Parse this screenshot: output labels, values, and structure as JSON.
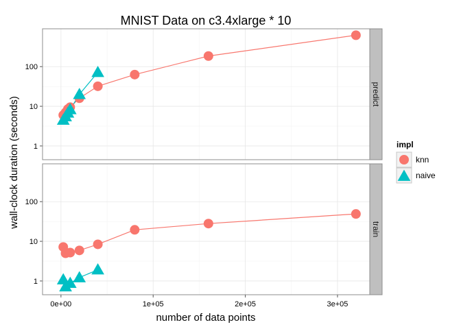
{
  "chart_data": {
    "type": "scatter",
    "title": "MNIST Data on c3.4xlarge * 10",
    "xlabel": "number of data points",
    "ylabel": "wall-clock duration (seconds)",
    "xlim": [
      -20000,
      335000
    ],
    "ylim": [
      0.45,
      900
    ],
    "y_scale": "log10",
    "x_ticks": [
      0,
      100000,
      200000,
      300000
    ],
    "x_tick_labels": [
      "0e+00",
      "1e+05",
      "2e+05",
      "3e+05"
    ],
    "y_ticks": [
      1,
      10,
      100
    ],
    "y_tick_labels": [
      "1",
      "10",
      "100"
    ],
    "grid": true,
    "legend": {
      "title": "impl",
      "position": "right",
      "entries": [
        {
          "label": "knn",
          "color": "#F8766D",
          "shape": "circle"
        },
        {
          "label": "naive",
          "color": "#00BFC4",
          "shape": "triangle"
        }
      ]
    },
    "facets": [
      {
        "label": "predict",
        "series": [
          {
            "name": "knn",
            "color": "#F8766D",
            "shape": "circle",
            "points": [
              [
                2500,
                6.0
              ],
              [
                5000,
                7.0
              ],
              [
                7500,
                8.5
              ],
              [
                10000,
                9.5
              ],
              [
                20000,
                16
              ],
              [
                40000,
                32
              ],
              [
                80000,
                63
              ],
              [
                160000,
                185
              ],
              [
                320000,
                620
              ]
            ]
          },
          {
            "name": "naive",
            "color": "#00BFC4",
            "shape": "triangle",
            "points": [
              [
                2500,
                4.5
              ],
              [
                5000,
                5.5
              ],
              [
                7500,
                6.8
              ],
              [
                10000,
                8.3
              ],
              [
                20000,
                20
              ],
              [
                40000,
                72
              ]
            ]
          }
        ]
      },
      {
        "label": "train",
        "series": [
          {
            "name": "knn",
            "color": "#F8766D",
            "shape": "circle",
            "points": [
              [
                2500,
                7.2
              ],
              [
                5000,
                5.0
              ],
              [
                10000,
                5.2
              ],
              [
                20000,
                5.9
              ],
              [
                40000,
                8.4
              ],
              [
                80000,
                19.5
              ],
              [
                160000,
                28
              ],
              [
                320000,
                49
              ]
            ]
          },
          {
            "name": "naive",
            "color": "#00BFC4",
            "shape": "triangle",
            "points": [
              [
                2500,
                1.08
              ],
              [
                5000,
                0.72
              ],
              [
                10000,
                0.88
              ],
              [
                20000,
                1.22
              ],
              [
                40000,
                1.92
              ]
            ]
          }
        ]
      }
    ]
  }
}
